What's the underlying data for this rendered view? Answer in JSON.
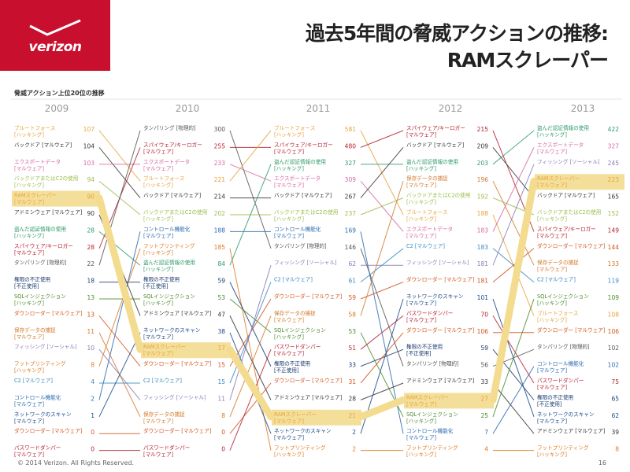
{
  "header": {
    "logo_text": "verizon",
    "title_line1": "過去5年間の脅威アクションの推移:",
    "title_line2": "RAMスクレーパー"
  },
  "subtitle": "脅威アクション上位20位の推移",
  "footer": {
    "copyright": "© 2014 Verizon. All Rights Reserved.",
    "page": "16"
  },
  "highlight_color": "#f3dc8f",
  "chart_data": {
    "type": "slope",
    "title": "脅威アクション上位20位の推移",
    "highlight": "RAMスクレーパー [マルウェア]",
    "years": [
      {
        "year": "2009",
        "items": [
          {
            "label": "ブルートフォース\n[ハッキング]",
            "value": "107",
            "color": "#e8a33c"
          },
          {
            "label": "バックドア [マルウェア]",
            "value": "104",
            "color": "#333333"
          },
          {
            "label": "エクスポートデータ\n[マルウェア]",
            "value": "103",
            "color": "#d46aa2"
          },
          {
            "label": "バックドアまたはC2の使用\n[ハッキング]",
            "value": "94",
            "color": "#9bbd4a"
          },
          {
            "label": "RAMスクレーパー\n[マルウェア]",
            "value": "90",
            "color": "#e8a33c"
          },
          {
            "label": "アドミンウェア [マルウェア]",
            "value": "90",
            "color": "#333333"
          },
          {
            "label": "盗んだ認証情報の使用\n[ハッキング]",
            "value": "28",
            "color": "#2e9a6a"
          },
          {
            "label": "スパイウェア/キーロガー\n[マルウェア]",
            "value": "28",
            "color": "#b5202f"
          },
          {
            "label": "タンパリング [物理的]",
            "value": "22",
            "color": "#555555"
          },
          {
            "label": "権限の不正使用\n[不正使用]",
            "value": "18",
            "color": "#1a3b6e"
          },
          {
            "label": "SQLインジェクション\n[ハッキング]",
            "value": "13",
            "color": "#4a8a2a"
          },
          {
            "label": "ダウンローダー [マルウェア]",
            "value": "13",
            "color": "#d4541a"
          },
          {
            "label": "保存データの捕捉\n[マルウェア]",
            "value": "11",
            "color": "#d27a2a"
          },
          {
            "label": "フィッシング [ソーシャル]",
            "value": "10",
            "color": "#8a7ab8"
          },
          {
            "label": "フットプリンティング\n[ハッキング]",
            "value": "8",
            "color": "#e07a20"
          },
          {
            "label": "C2 [マルウェア]",
            "value": "4",
            "color": "#3a8ac0"
          },
          {
            "label": "コントロール機能化\n[マルウェア]",
            "value": "2",
            "color": "#2a6ab0"
          },
          {
            "label": "ネットワークのスキャン\n[マルウェア]",
            "value": "1",
            "color": "#1a4a8a"
          },
          {
            "label": "ダウンローダー [マルウェア]",
            "value": "0",
            "color": "#d4541a"
          },
          {
            "label": "パスワードダンパー\n[マルウェア]",
            "value": "0",
            "color": "#b5202f"
          }
        ]
      },
      {
        "year": "2010",
        "items": [
          {
            "label": "タンパリング [物理的]",
            "value": "300",
            "color": "#555555"
          },
          {
            "label": "スパイウェア/キーロガー\n[マルウェア]",
            "value": "255",
            "color": "#b5202f"
          },
          {
            "label": "エクスポートデータ\n[マルウェア]",
            "value": "233",
            "color": "#d46aa2"
          },
          {
            "label": "ブルートフォース\n[ハッキング]",
            "value": "221",
            "color": "#e8a33c"
          },
          {
            "label": "バックドア [マルウェア]",
            "value": "214",
            "color": "#333333"
          },
          {
            "label": "バックドアまたはC2の使用\n[ハッキング]",
            "value": "202",
            "color": "#9bbd4a"
          },
          {
            "label": "コントロール機能化\n[マルウェア]",
            "value": "188",
            "color": "#2a6ab0"
          },
          {
            "label": "フットプリンティング\n[ハッキング]",
            "value": "185",
            "color": "#e07a20"
          },
          {
            "label": "盗んだ認証情報の使用\n[ハッキング]",
            "value": "84",
            "color": "#2e9a6a"
          },
          {
            "label": "権限の不正使用\n[不正使用]",
            "value": "59",
            "color": "#1a3b6e"
          },
          {
            "label": "SQLインジェクション\n[ハッキング]",
            "value": "53",
            "color": "#4a8a2a"
          },
          {
            "label": "アドミンウェア [マルウェア]",
            "value": "47",
            "color": "#333333"
          },
          {
            "label": "ネットワークのスキャン\n[マルウェア]",
            "value": "38",
            "color": "#1a4a8a"
          },
          {
            "label": "RAMスクレーパー\n[マルウェア]",
            "value": "17",
            "color": "#e8a33c"
          },
          {
            "label": "ダウンローダー [マルウェア]",
            "value": "15",
            "color": "#d4541a"
          },
          {
            "label": "C2 [マルウェア]",
            "value": "15",
            "color": "#3a8ac0"
          },
          {
            "label": "フィッシング [ソーシャル]",
            "value": "11",
            "color": "#8a7ab8"
          },
          {
            "label": "保存データの捕捉\n[マルウェア]",
            "value": "8",
            "color": "#d27a2a"
          },
          {
            "label": "ダウンローダー [マルウェア]",
            "value": "0",
            "color": "#d4541a"
          },
          {
            "label": "パスワードダンパー\n[マルウェア]",
            "value": "0",
            "color": "#b5202f"
          }
        ]
      },
      {
        "year": "2011",
        "items": [
          {
            "label": "ブルートフォース\n[ハッキング]",
            "value": "581",
            "color": "#e8a33c"
          },
          {
            "label": "スパイウェア/キーロガー\n[マルウェア]",
            "value": "480",
            "color": "#b5202f"
          },
          {
            "label": "盗んだ認証情報の使用\n[ハッキング]",
            "value": "327",
            "color": "#2e9a6a"
          },
          {
            "label": "エクスポートデータ\n[マルウェア]",
            "value": "309",
            "color": "#d46aa2"
          },
          {
            "label": "バックドア [マルウェア]",
            "value": "267",
            "color": "#333333"
          },
          {
            "label": "バックドアまたはC2の使用\n[ハッキング]",
            "value": "237",
            "color": "#9bbd4a"
          },
          {
            "label": "コントロール機能化\n[マルウェア]",
            "value": "169",
            "color": "#2a6ab0"
          },
          {
            "label": "タンパリング [物理的]",
            "value": "146",
            "color": "#555555"
          },
          {
            "label": "フィッシング [ソーシャル]",
            "value": "62",
            "color": "#8a7ab8"
          },
          {
            "label": "C2 [マルウェア]",
            "value": "61",
            "color": "#3a8ac0"
          },
          {
            "label": "ダウンローダー [マルウェア]",
            "value": "59",
            "color": "#d4541a"
          },
          {
            "label": "保存データの捕捉\n[マルウェア]",
            "value": "58",
            "color": "#d27a2a"
          },
          {
            "label": "SQLインジェクション\n[ハッキング]",
            "value": "53",
            "color": "#4a8a2a"
          },
          {
            "label": "パスワードダンパー\n[マルウェア]",
            "value": "51",
            "color": "#b5202f"
          },
          {
            "label": "権限の不正使用\n[不正使用]",
            "value": "33",
            "color": "#1a3b6e"
          },
          {
            "label": "ダウンローダー [マルウェア]",
            "value": "31",
            "color": "#d4541a"
          },
          {
            "label": "アドミンウェア [マルウェア]",
            "value": "28",
            "color": "#333333"
          },
          {
            "label": "RAMスクレーパー\n[マルウェア]",
            "value": "21",
            "color": "#e8a33c"
          },
          {
            "label": "ネットワークのスキャン\n[マルウェア]",
            "value": "2",
            "color": "#1a4a8a"
          },
          {
            "label": "フットプリンティング\n[ハッキング]",
            "value": "2",
            "color": "#e07a20"
          }
        ]
      },
      {
        "year": "2012",
        "items": [
          {
            "label": "スパイウェア/キーロガー\n[マルウェア]",
            "value": "215",
            "color": "#b5202f"
          },
          {
            "label": "バックドア [マルウェア]",
            "value": "209",
            "color": "#333333"
          },
          {
            "label": "盗んだ認証情報の使用\n[ハッキング]",
            "value": "203",
            "color": "#2e9a6a"
          },
          {
            "label": "保存データの捕捉\n[マルウェア]",
            "value": "196",
            "color": "#d27a2a"
          },
          {
            "label": "バックドアまたはC2の使用\n[ハッキング]",
            "value": "192",
            "color": "#9bbd4a"
          },
          {
            "label": "ブルートフォース\n[ハッキング]",
            "value": "188",
            "color": "#e8a33c"
          },
          {
            "label": "エクスポートデータ\n[マルウェア]",
            "value": "183",
            "color": "#d46aa2"
          },
          {
            "label": "C2 [マルウェア]",
            "value": "183",
            "color": "#3a8ac0"
          },
          {
            "label": "フィッシング [ソーシャル]",
            "value": "181",
            "color": "#8a7ab8"
          },
          {
            "label": "ダウンローダー [マルウェア]",
            "value": "181",
            "color": "#d4541a"
          },
          {
            "label": "ネットワークのスキャン\n[マルウェア]",
            "value": "101",
            "color": "#1a4a8a"
          },
          {
            "label": "パスワードダンパー\n[マルウェア]",
            "value": "70",
            "color": "#b5202f"
          },
          {
            "label": "ダウンローダー [マルウェア]",
            "value": "106",
            "color": "#d4541a"
          },
          {
            "label": "権限の不正使用\n[不正使用]",
            "value": "59",
            "color": "#1a3b6e"
          },
          {
            "label": "タンパリング [物理的]",
            "value": "56",
            "color": "#555555"
          },
          {
            "label": "アドミンウェア [マルウェア]",
            "value": "33",
            "color": "#333333"
          },
          {
            "label": "RAMスクレーパー\n[マルウェア]",
            "value": "27",
            "color": "#e8a33c"
          },
          {
            "label": "SQLインジェクション\n[ハッキング]",
            "value": "25",
            "color": "#4a8a2a"
          },
          {
            "label": "コントロール機能化\n[マルウェア]",
            "value": "7",
            "color": "#2a6ab0"
          },
          {
            "label": "フットプリンティング\n[ハッキング]",
            "value": "4",
            "color": "#e07a20"
          }
        ]
      },
      {
        "year": "2013",
        "items": [
          {
            "label": "盗んだ認証情報の使用\n[ハッキング]",
            "value": "422",
            "color": "#2e9a6a"
          },
          {
            "label": "エクスポートデータ\n[マルウェア]",
            "value": "327",
            "color": "#d46aa2"
          },
          {
            "label": "フィッシング [ソーシャル]",
            "value": "245",
            "color": "#8a7ab8"
          },
          {
            "label": "RAMスクレーパー\n[マルウェア]",
            "value": "223",
            "color": "#e8a33c"
          },
          {
            "label": "バックドア [マルウェア]",
            "value": "165",
            "color": "#333333"
          },
          {
            "label": "バックドアまたはC2の使用\n[ハッキング]",
            "value": "152",
            "color": "#9bbd4a"
          },
          {
            "label": "スパイウェア/キーロガー\n[マルウェア]",
            "value": "149",
            "color": "#b5202f"
          },
          {
            "label": "ダウンローダー [マルウェア]",
            "value": "144",
            "color": "#d4541a"
          },
          {
            "label": "保存データの捕捉\n[マルウェア]",
            "value": "133",
            "color": "#d27a2a"
          },
          {
            "label": "C2 [マルウェア]",
            "value": "119",
            "color": "#3a8ac0"
          },
          {
            "label": "SQLインジェクション\n[ハッキング]",
            "value": "109",
            "color": "#4a8a2a"
          },
          {
            "label": "ブルートフォース\n[ハッキング]",
            "value": "108",
            "color": "#e8a33c"
          },
          {
            "label": "ダウンローダー [マルウェア]",
            "value": "106",
            "color": "#d4541a"
          },
          {
            "label": "タンパリング [物理的]",
            "value": "102",
            "color": "#555555"
          },
          {
            "label": "コントロール機能化\n[マルウェア]",
            "value": "102",
            "color": "#2a6ab0"
          },
          {
            "label": "パスワードダンパー\n[マルウェア]",
            "value": "75",
            "color": "#b5202f"
          },
          {
            "label": "権限の不正使用\n[不正使用]",
            "value": "65",
            "color": "#1a3b6e"
          },
          {
            "label": "ネットワークのスキャン\n[マルウェア]",
            "value": "62",
            "color": "#1a4a8a"
          },
          {
            "label": "アドミンウェア [マルウェア]",
            "value": "39",
            "color": "#333333"
          },
          {
            "label": "フットプリンティング\n[ハッキング]",
            "value": "8",
            "color": "#e07a20"
          }
        ]
      }
    ]
  }
}
